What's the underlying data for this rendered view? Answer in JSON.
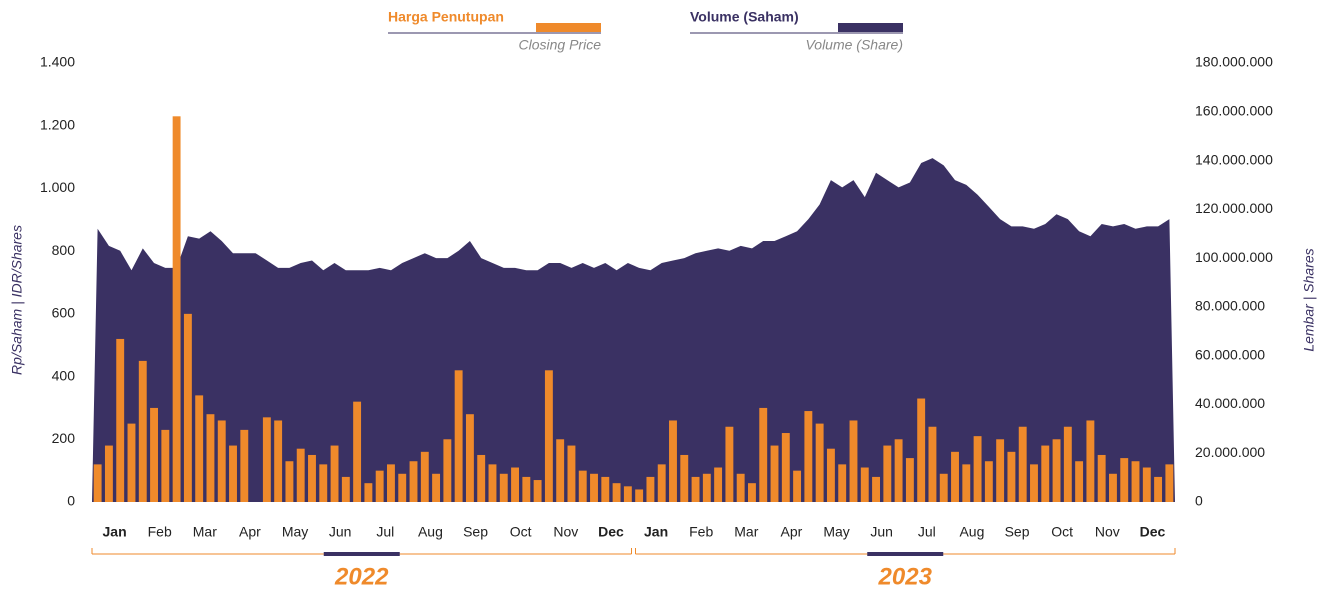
{
  "chart_data": {
    "type": "bar-area",
    "series": [
      {
        "name": "Harga Penutupan",
        "name_en": "Closing Price",
        "color": "#ef8a2b",
        "axis": "y",
        "values": [
          120,
          180,
          520,
          250,
          450,
          300,
          230,
          1230,
          600,
          340,
          280,
          260,
          180,
          230,
          0,
          270,
          260,
          130,
          170,
          150,
          120,
          180,
          80,
          320,
          60,
          100,
          120,
          90,
          130,
          160,
          90,
          200,
          420,
          280,
          150,
          120,
          90,
          110,
          80,
          70,
          420,
          200,
          180,
          100,
          90,
          80,
          60,
          50,
          40,
          80,
          120,
          260,
          150,
          80,
          90,
          110,
          240,
          90,
          60,
          300,
          180,
          220,
          100,
          290,
          250,
          170,
          120,
          260,
          110,
          80,
          180,
          200,
          140,
          330,
          240,
          90,
          160,
          120,
          210,
          130,
          200,
          160,
          240,
          120,
          180,
          200,
          240,
          130,
          260,
          150,
          90,
          140,
          130,
          110,
          80,
          120
        ]
      },
      {
        "name": "Volume (Saham)",
        "name_en": "Volume (Share)",
        "color": "#3a3163",
        "axis": "y2",
        "values": [
          112000000,
          105000000,
          103000000,
          95000000,
          104000000,
          98000000,
          96000000,
          96000000,
          109000000,
          108000000,
          111000000,
          107000000,
          102000000,
          102000000,
          102000000,
          99000000,
          96000000,
          96000000,
          98000000,
          99000000,
          95000000,
          98000000,
          95000000,
          95000000,
          95000000,
          96000000,
          95000000,
          98000000,
          100000000,
          102000000,
          100000000,
          100000000,
          103000000,
          107000000,
          100000000,
          98000000,
          96000000,
          96000000,
          95000000,
          95000000,
          98000000,
          98000000,
          96000000,
          98000000,
          96000000,
          98000000,
          95000000,
          98000000,
          96000000,
          95000000,
          98000000,
          99000000,
          100000000,
          102000000,
          103000000,
          104000000,
          103000000,
          105000000,
          104000000,
          107000000,
          107000000,
          109000000,
          111000000,
          116000000,
          122000000,
          132000000,
          129000000,
          132000000,
          125000000,
          135000000,
          132000000,
          129000000,
          131000000,
          139000000,
          141000000,
          138000000,
          132000000,
          130000000,
          126000000,
          121000000,
          116000000,
          113000000,
          113000000,
          112000000,
          114000000,
          118000000,
          116000000,
          111000000,
          109000000,
          114000000,
          113000000,
          114000000,
          112000000,
          113000000,
          113000000,
          116000000
        ]
      }
    ],
    "x_labels": [
      "Jan",
      "Feb",
      "Mar",
      "Apr",
      "May",
      "Jun",
      "Jul",
      "Aug",
      "Sep",
      "Oct",
      "Nov",
      "Dec",
      "Jan",
      "Feb",
      "Mar",
      "Apr",
      "May",
      "Jun",
      "Jul",
      "Aug",
      "Sep",
      "Oct",
      "Nov",
      "Dec"
    ],
    "years": [
      "2022",
      "2023"
    ],
    "ylabel": "Rp/Saham | IDR/Shares",
    "y2label": "Lembar | Shares",
    "ylim": [
      0,
      1400
    ],
    "yticks": [
      0,
      200,
      400,
      600,
      800,
      {
        "value": 1000,
        "label": "1.000"
      },
      {
        "value": 1200,
        "label": "1.200"
      },
      {
        "value": 1400,
        "label": "1.400"
      }
    ],
    "y2lim": [
      0,
      180000000
    ],
    "y2ticks": [
      0,
      {
        "value": 20000000,
        "label": "20.000.000"
      },
      {
        "value": 40000000,
        "label": "40.000.000"
      },
      {
        "value": 60000000,
        "label": "60.000.000"
      },
      {
        "value": 80000000,
        "label": "80.000.000"
      },
      {
        "value": 100000000,
        "label": "100.000.000"
      },
      {
        "value": 120000000,
        "label": "120.000.000"
      },
      {
        "value": 140000000,
        "label": "140.000.000"
      },
      {
        "value": 160000000,
        "label": "160.000.000"
      },
      {
        "value": 180000000,
        "label": "180.000.000"
      }
    ]
  }
}
